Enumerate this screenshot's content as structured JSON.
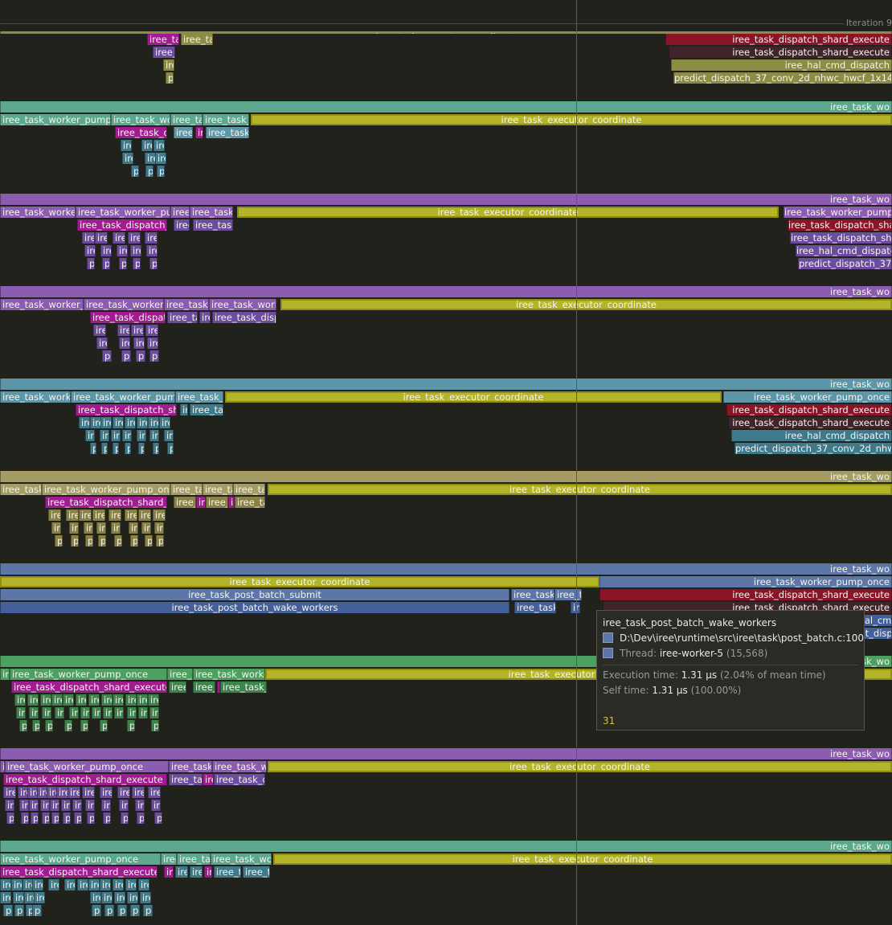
{
  "header": {
    "iteration_label": "Iteration 9"
  },
  "colors": {
    "background": "#22221d",
    "coordinate": "#b4b428",
    "highlight": "#d8c430"
  },
  "zone_names": {
    "w": "iree_task_worker_pump_once",
    "wt": "iree_task_wo",
    "ex": "iree_task_executor_coordinate",
    "ds": "iree_task_dispatch_shard_execute",
    "hal": "iree_hal_cmd_dispatch",
    "pred": "predict_dispatch_37_conv_2d_nhwc_hwcf_1x14x25",
    "post": "iree_task_post_batch_submit",
    "wake": "iree_task_post_batch_wake_workers"
  },
  "tooltip": {
    "title": "iree_task_post_batch_wake_workers",
    "source": "D:\\Dev\\iree\\runtime\\src\\iree\\task\\post_batch.c:100",
    "thread_label": "Thread:",
    "thread_name": "iree-worker-5",
    "thread_id": "(15,568)",
    "exec_label": "Execution time:",
    "exec_value": "1.31 μs",
    "exec_pct": "(2.04% of mean time)",
    "self_label": "Self time:",
    "self_value": "1.31 μs",
    "self_pct": "(100.00%)",
    "count": "31"
  }
}
